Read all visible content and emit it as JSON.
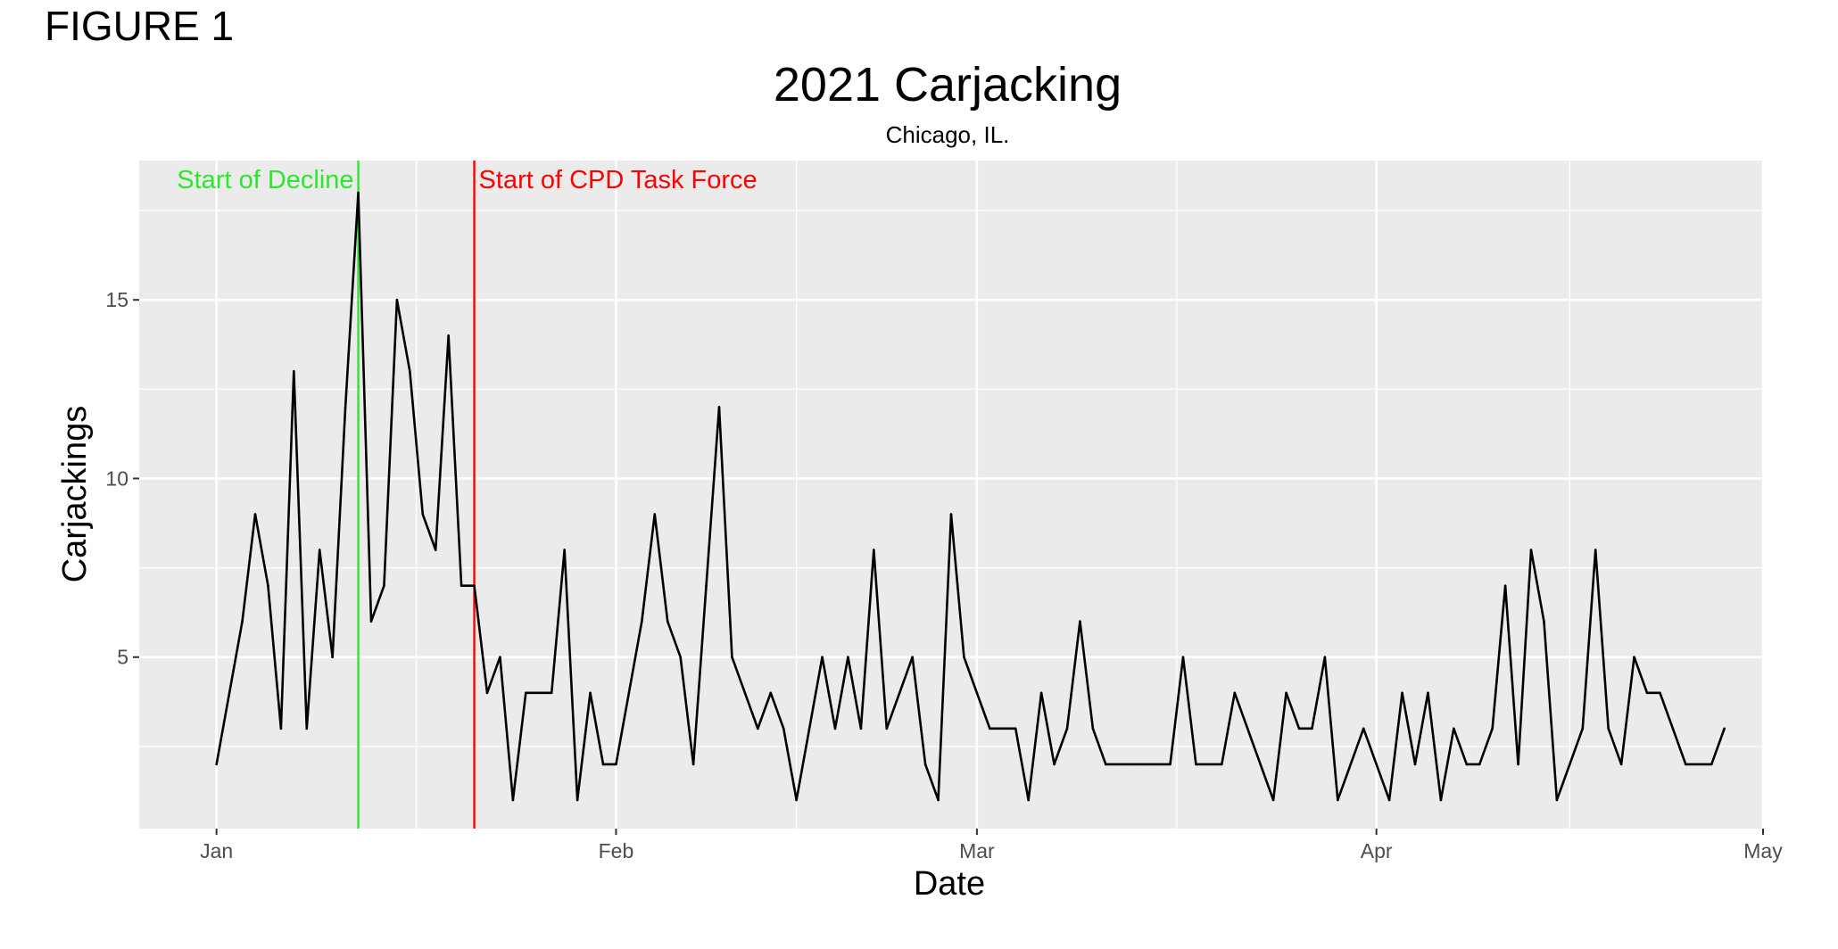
{
  "figure_label": "FIGURE 1",
  "chart_data": {
    "type": "line",
    "title": "2021 Carjacking",
    "subtitle": "Chicago, IL.",
    "xlabel": "Date",
    "ylabel": "Carjackings",
    "x_range": [
      "2020-12-26",
      "2021-05-01"
    ],
    "ylim": [
      0.2,
      18.9
    ],
    "x_ticks": [
      {
        "date": "2021-01-01",
        "label": "Jan"
      },
      {
        "date": "2021-02-01",
        "label": "Feb"
      },
      {
        "date": "2021-03-01",
        "label": "Mar"
      },
      {
        "date": "2021-04-01",
        "label": "Apr"
      },
      {
        "date": "2021-05-01",
        "label": "May"
      }
    ],
    "y_ticks": [
      5,
      10,
      15
    ],
    "grid": true,
    "line_color": "#000000",
    "background": "#ebebeb",
    "annotations": [
      {
        "date": "2021-01-12",
        "label": "Start of Decline",
        "color": "#2ee62e"
      },
      {
        "date": "2021-01-21",
        "label": "Start of CPD Task Force",
        "color": "#ff0000"
      }
    ],
    "series": [
      {
        "x_start": "2021-01-01",
        "step_days": 1,
        "values": [
          2,
          4,
          6,
          9,
          7,
          3,
          13,
          3,
          8,
          5,
          12,
          18,
          6,
          7,
          15,
          13,
          9,
          8,
          14,
          7,
          7,
          4,
          5,
          1,
          4,
          4,
          4,
          8,
          1,
          4,
          2,
          2,
          4,
          6,
          9,
          6,
          5,
          2,
          7,
          12,
          5,
          4,
          3,
          4,
          3,
          1,
          3,
          5,
          3,
          5,
          3,
          8,
          3,
          4,
          5,
          2,
          1,
          9,
          5,
          4,
          3,
          3,
          3,
          1,
          4,
          2,
          3,
          6,
          3,
          2,
          2,
          2,
          2,
          2,
          2,
          5,
          2,
          2,
          2,
          4,
          3,
          2,
          1,
          4,
          3,
          3,
          5,
          1,
          2,
          3,
          2,
          1,
          4,
          2,
          4,
          1,
          3,
          2,
          2,
          3,
          7,
          2,
          8,
          6,
          1,
          2,
          3,
          8,
          3,
          2,
          5,
          4,
          4,
          3,
          2,
          2,
          2,
          3
        ]
      }
    ]
  }
}
